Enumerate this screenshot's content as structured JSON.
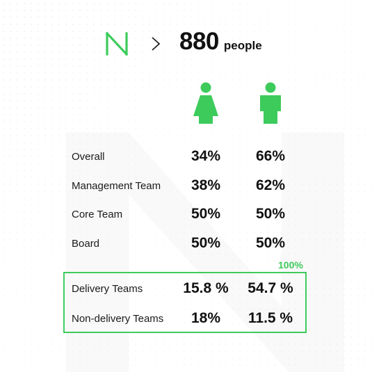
{
  "colors": {
    "accent": "#3dcb5c",
    "text": "#111111",
    "background": "#ffffff"
  },
  "header": {
    "logo_icon": "n-logo-icon",
    "separator_icon": "chevron-right-icon",
    "count": "880",
    "unit": "people"
  },
  "columns": {
    "female_icon": "female-icon",
    "male_icon": "male-icon"
  },
  "rows": [
    {
      "label": "Overall",
      "female": "34%",
      "male": "66%"
    },
    {
      "label": "Management Team",
      "female": "38%",
      "male": "62%"
    },
    {
      "label": "Core Team",
      "female": "50%",
      "male": "50%"
    },
    {
      "label": "Board",
      "female": "50%",
      "male": "50%"
    }
  ],
  "highlighted": {
    "total_label": "100%",
    "rows": [
      {
        "label": "Delivery Teams",
        "female": "15.8 %",
        "male": "54.7 %"
      },
      {
        "label": "Non-delivery Teams",
        "female": "18%",
        "male": "11.5 %"
      }
    ]
  }
}
